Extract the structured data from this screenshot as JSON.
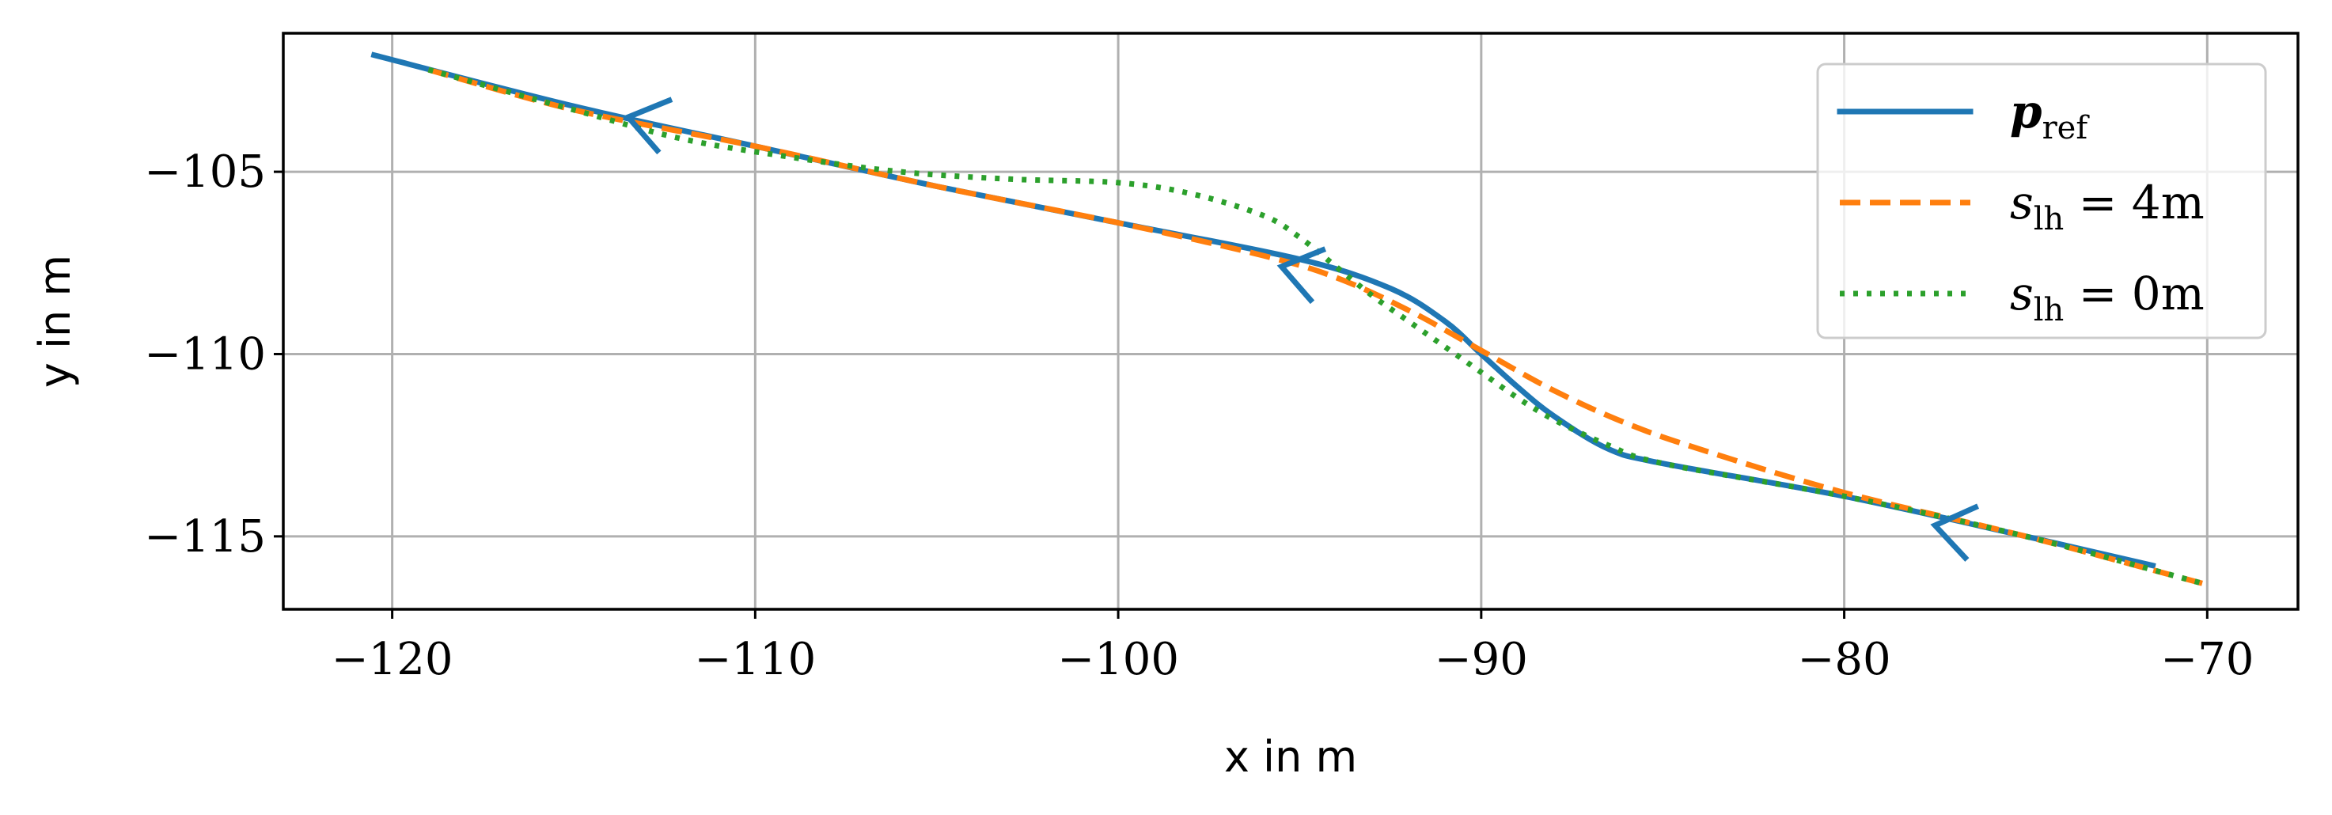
{
  "chart_data": {
    "type": "line",
    "title": "",
    "xlabel": "x in m",
    "ylabel": "y in m",
    "xlim": [
      -123,
      -67.5
    ],
    "ylim": [
      -117,
      -101.2
    ],
    "xticks": [
      -120,
      -110,
      -100,
      -90,
      -80,
      -70
    ],
    "yticks": [
      -105,
      -110,
      -115
    ],
    "xtick_labels": [
      "−120",
      "−110",
      "−100",
      "−90",
      "−80",
      "−70"
    ],
    "ytick_labels": [
      "−105",
      "−110",
      "−115"
    ],
    "grid": true,
    "legend_position": "top-right",
    "series": [
      {
        "name": "p_ref",
        "legend": {
          "main": "p",
          "sub": "ref"
        },
        "color": "#1f77b4",
        "style": "solid",
        "x": [
          -120.5,
          -115,
          -110,
          -105,
          -100,
          -95,
          -92.5,
          -91,
          -90,
          -89,
          -88,
          -86.5,
          -85,
          -80,
          -75,
          -71.5
        ],
        "y": [
          -101.8,
          -103.2,
          -104.3,
          -105.4,
          -106.4,
          -107.4,
          -108.2,
          -109.1,
          -110.0,
          -110.9,
          -111.7,
          -112.6,
          -113.0,
          -113.9,
          -115.0,
          -115.8
        ]
      },
      {
        "name": "s_lh = 4m",
        "legend": {
          "main": "s",
          "sub": "lh",
          "rest": " = 4m"
        },
        "color": "#ff7f0e",
        "style": "dashed",
        "x": [
          -119,
          -115,
          -110,
          -105,
          -100,
          -96,
          -94,
          -92,
          -90,
          -88,
          -86,
          -84,
          -80,
          -75,
          -70.1
        ],
        "y": [
          -102.2,
          -103.3,
          -104.3,
          -105.4,
          -106.4,
          -107.3,
          -107.9,
          -108.8,
          -109.9,
          -111.0,
          -111.9,
          -112.6,
          -113.8,
          -115.0,
          -116.3
        ]
      },
      {
        "name": "s_lh = 0m",
        "legend": {
          "main": "s",
          "sub": "lh",
          "rest": " = 0m"
        },
        "color": "#2ca02c",
        "style": "dotted",
        "x": [
          -119,
          -115,
          -112,
          -109,
          -106,
          -103,
          -100,
          -98,
          -96,
          -95,
          -94,
          -93,
          -92,
          -91,
          -90,
          -89,
          -88,
          -86.5,
          -85,
          -80,
          -75,
          -70.1
        ],
        "y": [
          -102.2,
          -103.3,
          -104.1,
          -104.6,
          -105.0,
          -105.2,
          -105.3,
          -105.6,
          -106.2,
          -106.8,
          -107.6,
          -108.4,
          -109.1,
          -109.8,
          -110.5,
          -111.2,
          -111.8,
          -112.5,
          -113.0,
          -113.9,
          -115.0,
          -116.3
        ]
      }
    ],
    "annotations": [
      {
        "type": "direction-arrow",
        "series": "p_ref",
        "x": -113.5,
        "y": -103.5
      },
      {
        "type": "direction-arrow",
        "series": "p_ref",
        "x": -95.5,
        "y": -107.6
      },
      {
        "type": "direction-arrow",
        "series": "p_ref",
        "x": -77.5,
        "y": -114.7
      }
    ]
  }
}
